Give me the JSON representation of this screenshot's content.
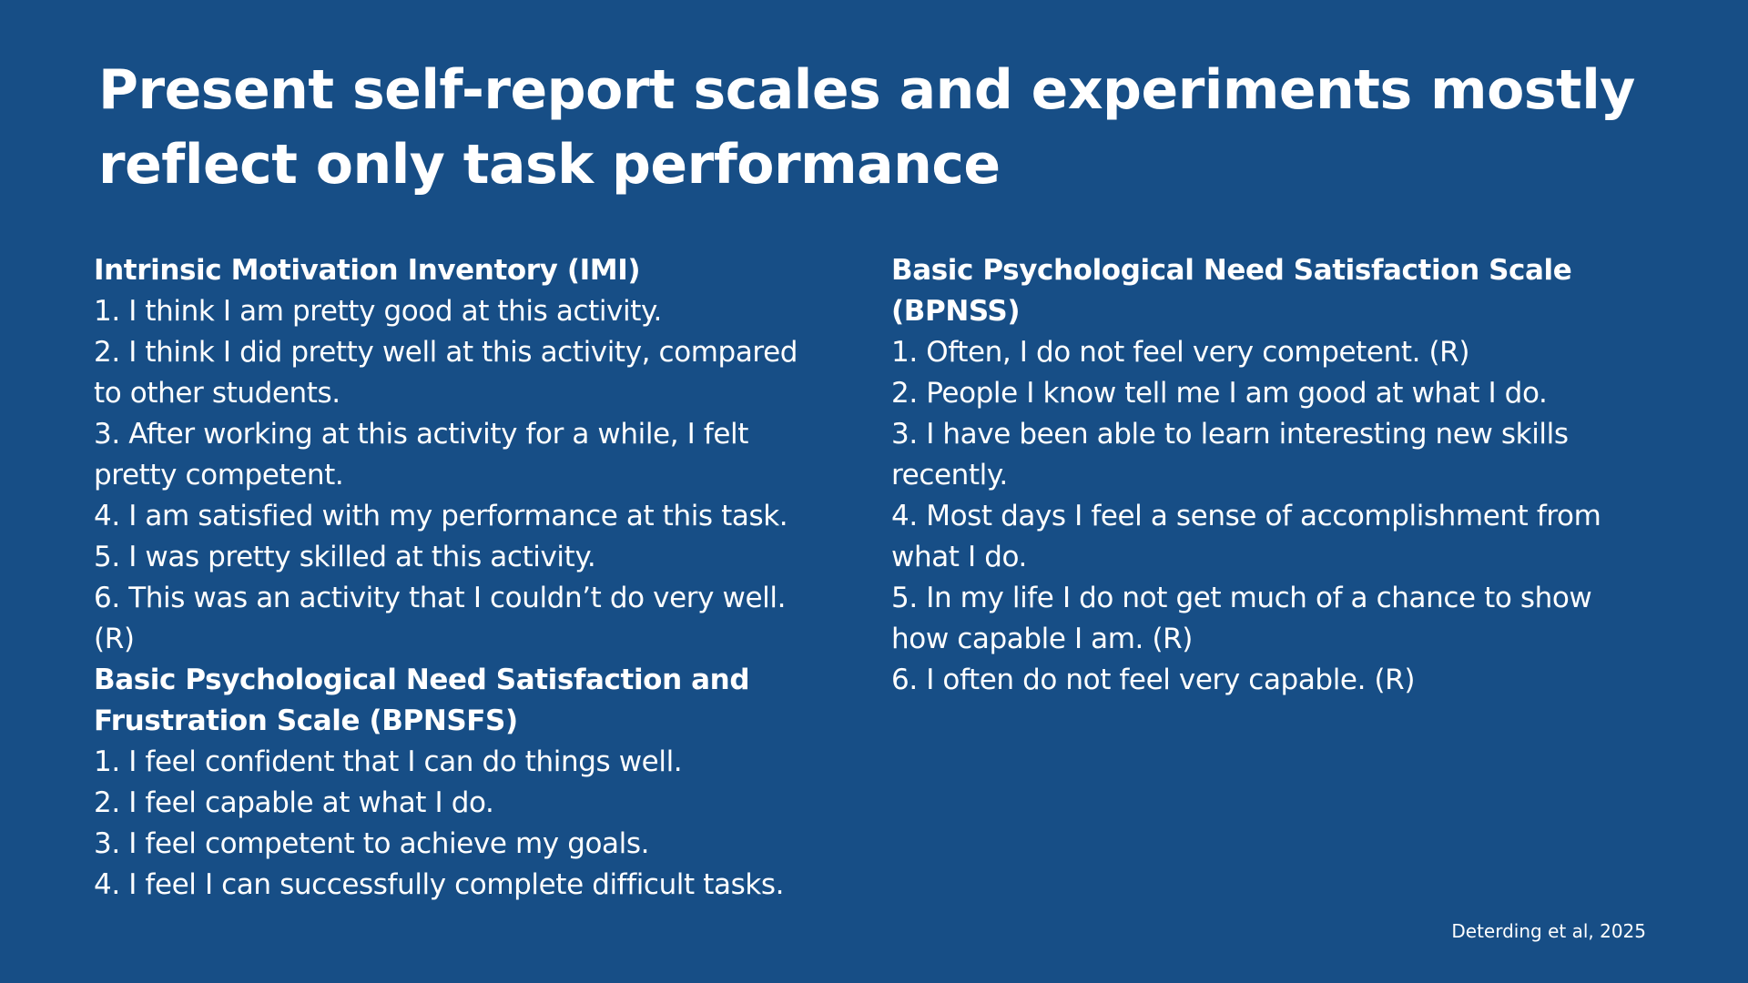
{
  "slide": {
    "title": "Present self-report scales and experiments mostly reflect only task performance",
    "left": {
      "imi_heading": "Intrinsic Motivation Inventory (IMI)",
      "imi_items": [
        "1. I think I am pretty good at this activity.",
        "2. I think I did pretty well at this activity, compared to other students.",
        "3. After working at this activity for a while, I felt pretty competent.",
        "4. I am satisfied with my performance at this task.",
        "5. I was pretty skilled at this activity.",
        "6. This was an activity that I couldn’t do very well. (R)"
      ],
      "bpnsfs_heading": "Basic Psychological Need Satisfaction and Frustration Scale (BPNSFS)",
      "bpnsfs_items": [
        "1. I feel confident that I can do things well.",
        "2. I feel capable at what I do.",
        "3. I feel competent to achieve my goals.",
        "4. I feel I can successfully complete difficult tasks."
      ]
    },
    "right": {
      "bpnss_heading": "Basic Psychological Need Satisfaction Scale (BPNSS)",
      "bpnss_items": [
        "1. Often, I do not feel very competent. (R)",
        "2. People I know tell me I am good at what I do.",
        "3. I have been able to learn interesting new skills recently.",
        "4. Most days I feel a sense of accomplishment from what I do.",
        "5. In my life I do not get much of a chance to show how capable I am. (R)",
        "6. I often do not feel very capable. (R)"
      ]
    },
    "citation": "Deterding et al, 2025",
    "colors": {
      "background": "#174e86",
      "text": "#ffffff"
    }
  }
}
